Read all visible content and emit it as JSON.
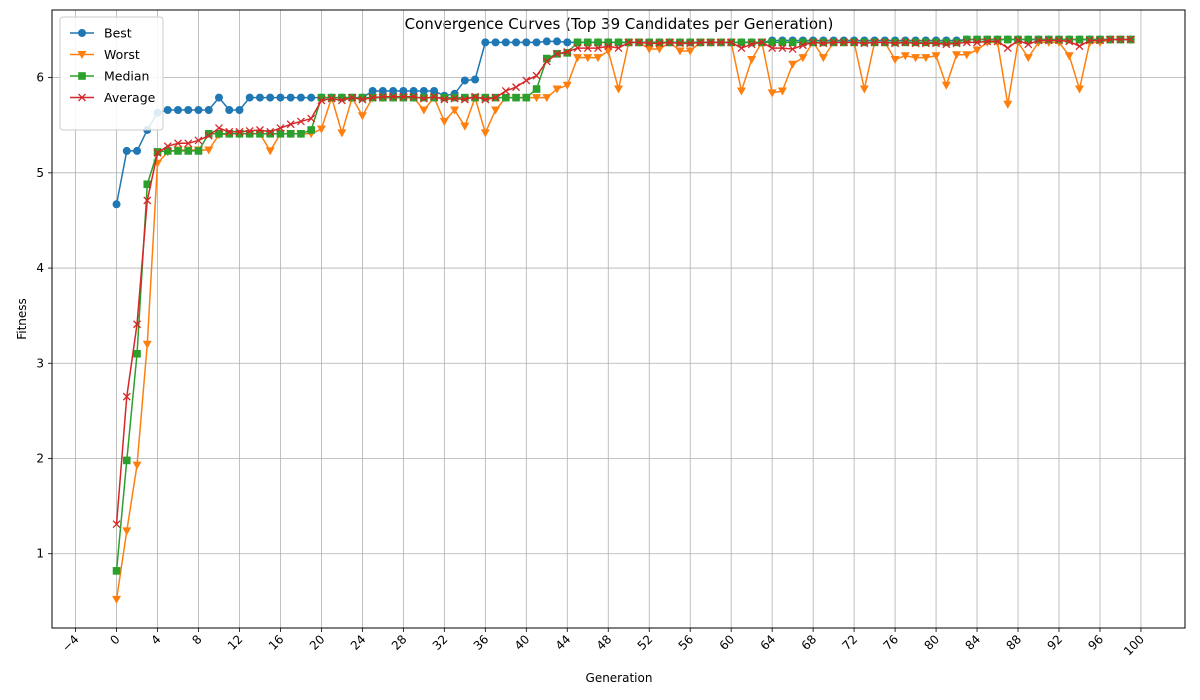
{
  "chart_data": {
    "type": "line",
    "title": "Convergence Curves (Top 39 Candidates per Generation)",
    "xlabel": "Generation",
    "ylabel": "Fitness",
    "xlim": [
      -6.3,
      104.3
    ],
    "ylim": [
      0.22,
      6.71
    ],
    "xticks": [
      -4,
      0,
      4,
      8,
      12,
      16,
      20,
      24,
      28,
      32,
      36,
      40,
      44,
      48,
      52,
      56,
      60,
      64,
      68,
      72,
      76,
      80,
      84,
      88,
      92,
      96,
      100
    ],
    "xtick_labels": [
      "−4",
      "0",
      "4",
      "8",
      "12",
      "16",
      "20",
      "24",
      "28",
      "32",
      "36",
      "40",
      "44",
      "48",
      "52",
      "56",
      "60",
      "64",
      "68",
      "72",
      "76",
      "80",
      "84",
      "88",
      "92",
      "96",
      "100"
    ],
    "yticks": [
      1,
      2,
      3,
      4,
      5,
      6
    ],
    "ytick_labels": [
      "1",
      "2",
      "3",
      "4",
      "5",
      "6"
    ],
    "grid": true,
    "legend_position": "upper-left",
    "x": [
      0,
      1,
      2,
      3,
      4,
      5,
      6,
      7,
      8,
      9,
      10,
      11,
      12,
      13,
      14,
      15,
      16,
      17,
      18,
      19,
      20,
      21,
      22,
      23,
      24,
      25,
      26,
      27,
      28,
      29,
      30,
      31,
      32,
      33,
      34,
      35,
      36,
      37,
      38,
      39,
      40,
      41,
      42,
      43,
      44,
      45,
      46,
      47,
      48,
      49,
      50,
      51,
      52,
      53,
      54,
      55,
      56,
      57,
      58,
      59,
      60,
      61,
      62,
      63,
      64,
      65,
      66,
      67,
      68,
      69,
      70,
      71,
      72,
      73,
      74,
      75,
      76,
      77,
      78,
      79,
      80,
      81,
      82,
      83,
      84,
      85,
      86,
      87,
      88,
      89,
      90,
      91,
      92,
      93,
      94,
      95,
      96,
      97,
      98,
      99
    ],
    "series": [
      {
        "name": "Best",
        "color": "#1f77b4",
        "marker": "circle",
        "values": [
          4.67,
          5.23,
          5.23,
          5.45,
          5.63,
          5.66,
          5.66,
          5.66,
          5.66,
          5.66,
          5.79,
          5.66,
          5.66,
          5.79,
          5.79,
          5.79,
          5.79,
          5.79,
          5.79,
          5.79,
          5.79,
          5.79,
          5.79,
          5.79,
          5.79,
          5.86,
          5.86,
          5.86,
          5.86,
          5.86,
          5.86,
          5.86,
          5.81,
          5.83,
          5.97,
          5.98,
          6.37,
          6.37,
          6.37,
          6.37,
          6.37,
          6.37,
          6.38,
          6.38,
          6.37,
          6.37,
          6.37,
          6.37,
          6.37,
          6.37,
          6.37,
          6.37,
          6.37,
          6.37,
          6.37,
          6.37,
          6.37,
          6.37,
          6.37,
          6.37,
          6.37,
          6.37,
          6.37,
          6.37,
          6.39,
          6.39,
          6.39,
          6.39,
          6.39,
          6.39,
          6.39,
          6.39,
          6.39,
          6.39,
          6.39,
          6.39,
          6.39,
          6.39,
          6.39,
          6.39,
          6.39,
          6.39,
          6.39,
          6.4,
          6.4,
          6.4,
          6.4,
          6.4,
          6.4,
          6.4,
          6.4,
          6.4,
          6.4,
          6.4,
          6.4,
          6.4,
          6.4,
          6.4,
          6.4,
          6.4
        ]
      },
      {
        "name": "Worst",
        "color": "#ff7f0e",
        "marker": "triangle-down",
        "values": [
          0.52,
          1.24,
          1.93,
          3.2,
          5.1,
          5.22,
          5.24,
          5.24,
          5.24,
          5.24,
          5.4,
          5.41,
          5.41,
          5.41,
          5.41,
          5.23,
          5.41,
          5.41,
          5.41,
          5.41,
          5.46,
          5.79,
          5.42,
          5.79,
          5.6,
          5.79,
          5.79,
          5.79,
          5.79,
          5.79,
          5.66,
          5.79,
          5.54,
          5.66,
          5.49,
          5.79,
          5.42,
          5.66,
          5.79,
          5.79,
          5.79,
          5.79,
          5.79,
          5.88,
          5.92,
          6.21,
          6.21,
          6.21,
          6.28,
          5.88,
          6.37,
          6.37,
          6.3,
          6.3,
          6.37,
          6.28,
          6.28,
          6.37,
          6.37,
          6.37,
          6.37,
          5.86,
          6.19,
          6.37,
          5.84,
          5.86,
          6.14,
          6.21,
          6.37,
          6.21,
          6.37,
          6.37,
          6.37,
          5.88,
          6.37,
          6.37,
          6.19,
          6.23,
          6.21,
          6.21,
          6.23,
          5.92,
          6.24,
          6.24,
          6.29,
          6.37,
          6.37,
          5.72,
          6.37,
          6.21,
          6.37,
          6.37,
          6.37,
          6.23,
          5.88,
          6.37,
          6.37,
          6.4,
          6.4,
          6.4
        ]
      },
      {
        "name": "Median",
        "color": "#2ca02c",
        "marker": "square",
        "values": [
          0.82,
          1.98,
          3.1,
          4.88,
          5.22,
          5.23,
          5.23,
          5.23,
          5.23,
          5.41,
          5.41,
          5.41,
          5.41,
          5.41,
          5.41,
          5.41,
          5.41,
          5.41,
          5.41,
          5.45,
          5.79,
          5.79,
          5.79,
          5.79,
          5.79,
          5.79,
          5.79,
          5.79,
          5.79,
          5.79,
          5.79,
          5.79,
          5.79,
          5.79,
          5.79,
          5.79,
          5.79,
          5.79,
          5.79,
          5.79,
          5.79,
          5.88,
          6.2,
          6.25,
          6.26,
          6.37,
          6.37,
          6.37,
          6.37,
          6.37,
          6.37,
          6.37,
          6.37,
          6.37,
          6.37,
          6.37,
          6.37,
          6.37,
          6.37,
          6.37,
          6.37,
          6.37,
          6.37,
          6.37,
          6.37,
          6.37,
          6.37,
          6.37,
          6.37,
          6.37,
          6.37,
          6.37,
          6.37,
          6.37,
          6.37,
          6.37,
          6.37,
          6.37,
          6.37,
          6.37,
          6.37,
          6.37,
          6.37,
          6.4,
          6.4,
          6.4,
          6.4,
          6.4,
          6.4,
          6.4,
          6.4,
          6.4,
          6.4,
          6.4,
          6.4,
          6.4,
          6.4,
          6.4,
          6.4,
          6.4
        ]
      },
      {
        "name": "Average",
        "color": "#d62728",
        "marker": "x",
        "values": [
          1.31,
          2.65,
          3.41,
          4.71,
          5.21,
          5.28,
          5.31,
          5.31,
          5.34,
          5.39,
          5.47,
          5.43,
          5.43,
          5.44,
          5.45,
          5.43,
          5.47,
          5.51,
          5.54,
          5.57,
          5.76,
          5.78,
          5.76,
          5.79,
          5.77,
          5.79,
          5.8,
          5.8,
          5.8,
          5.8,
          5.78,
          5.8,
          5.77,
          5.78,
          5.77,
          5.8,
          5.77,
          5.79,
          5.86,
          5.9,
          5.97,
          6.02,
          6.17,
          6.25,
          6.27,
          6.31,
          6.31,
          6.31,
          6.33,
          6.31,
          6.37,
          6.37,
          6.36,
          6.36,
          6.37,
          6.36,
          6.36,
          6.37,
          6.37,
          6.37,
          6.37,
          6.31,
          6.35,
          6.37,
          6.31,
          6.31,
          6.3,
          6.34,
          6.37,
          6.36,
          6.37,
          6.37,
          6.37,
          6.36,
          6.37,
          6.37,
          6.36,
          6.37,
          6.36,
          6.36,
          6.36,
          6.35,
          6.36,
          6.37,
          6.37,
          6.38,
          6.38,
          6.31,
          6.39,
          6.35,
          6.39,
          6.39,
          6.39,
          6.38,
          6.33,
          6.39,
          6.39,
          6.4,
          6.4,
          6.4
        ]
      }
    ]
  }
}
